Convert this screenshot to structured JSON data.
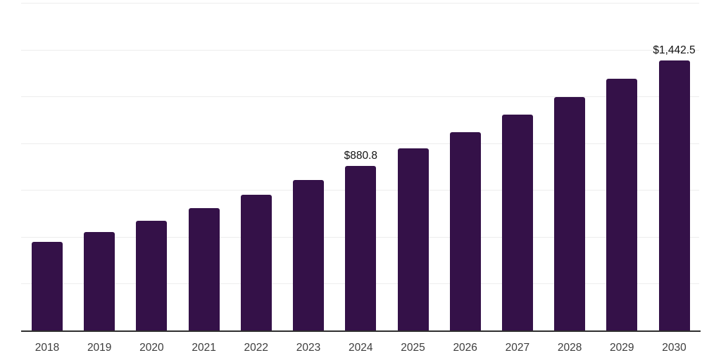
{
  "page": {
    "background_color": "#ffffff"
  },
  "chart_data": {
    "type": "bar",
    "categories": [
      "2018",
      "2019",
      "2020",
      "2021",
      "2022",
      "2023",
      "2024",
      "2025",
      "2026",
      "2027",
      "2028",
      "2029",
      "2030"
    ],
    "values": [
      474,
      526,
      586,
      654,
      724,
      802,
      880.8,
      972,
      1058,
      1152,
      1246,
      1346,
      1442.5
    ],
    "data_labels": {
      "2024": "$880.8",
      "2030": "$1,442.5"
    },
    "xlabel": "",
    "ylabel": "",
    "ylim": [
      0,
      1750
    ],
    "gridline_step": 250,
    "grid": "horizontal-only",
    "legend": "none",
    "colors": {
      "bar": "#341148",
      "axis_line": "#2e2e2e",
      "gridline": "#ededed",
      "x_tick_label": "#3d3d3d",
      "value_label": "#111111"
    }
  }
}
